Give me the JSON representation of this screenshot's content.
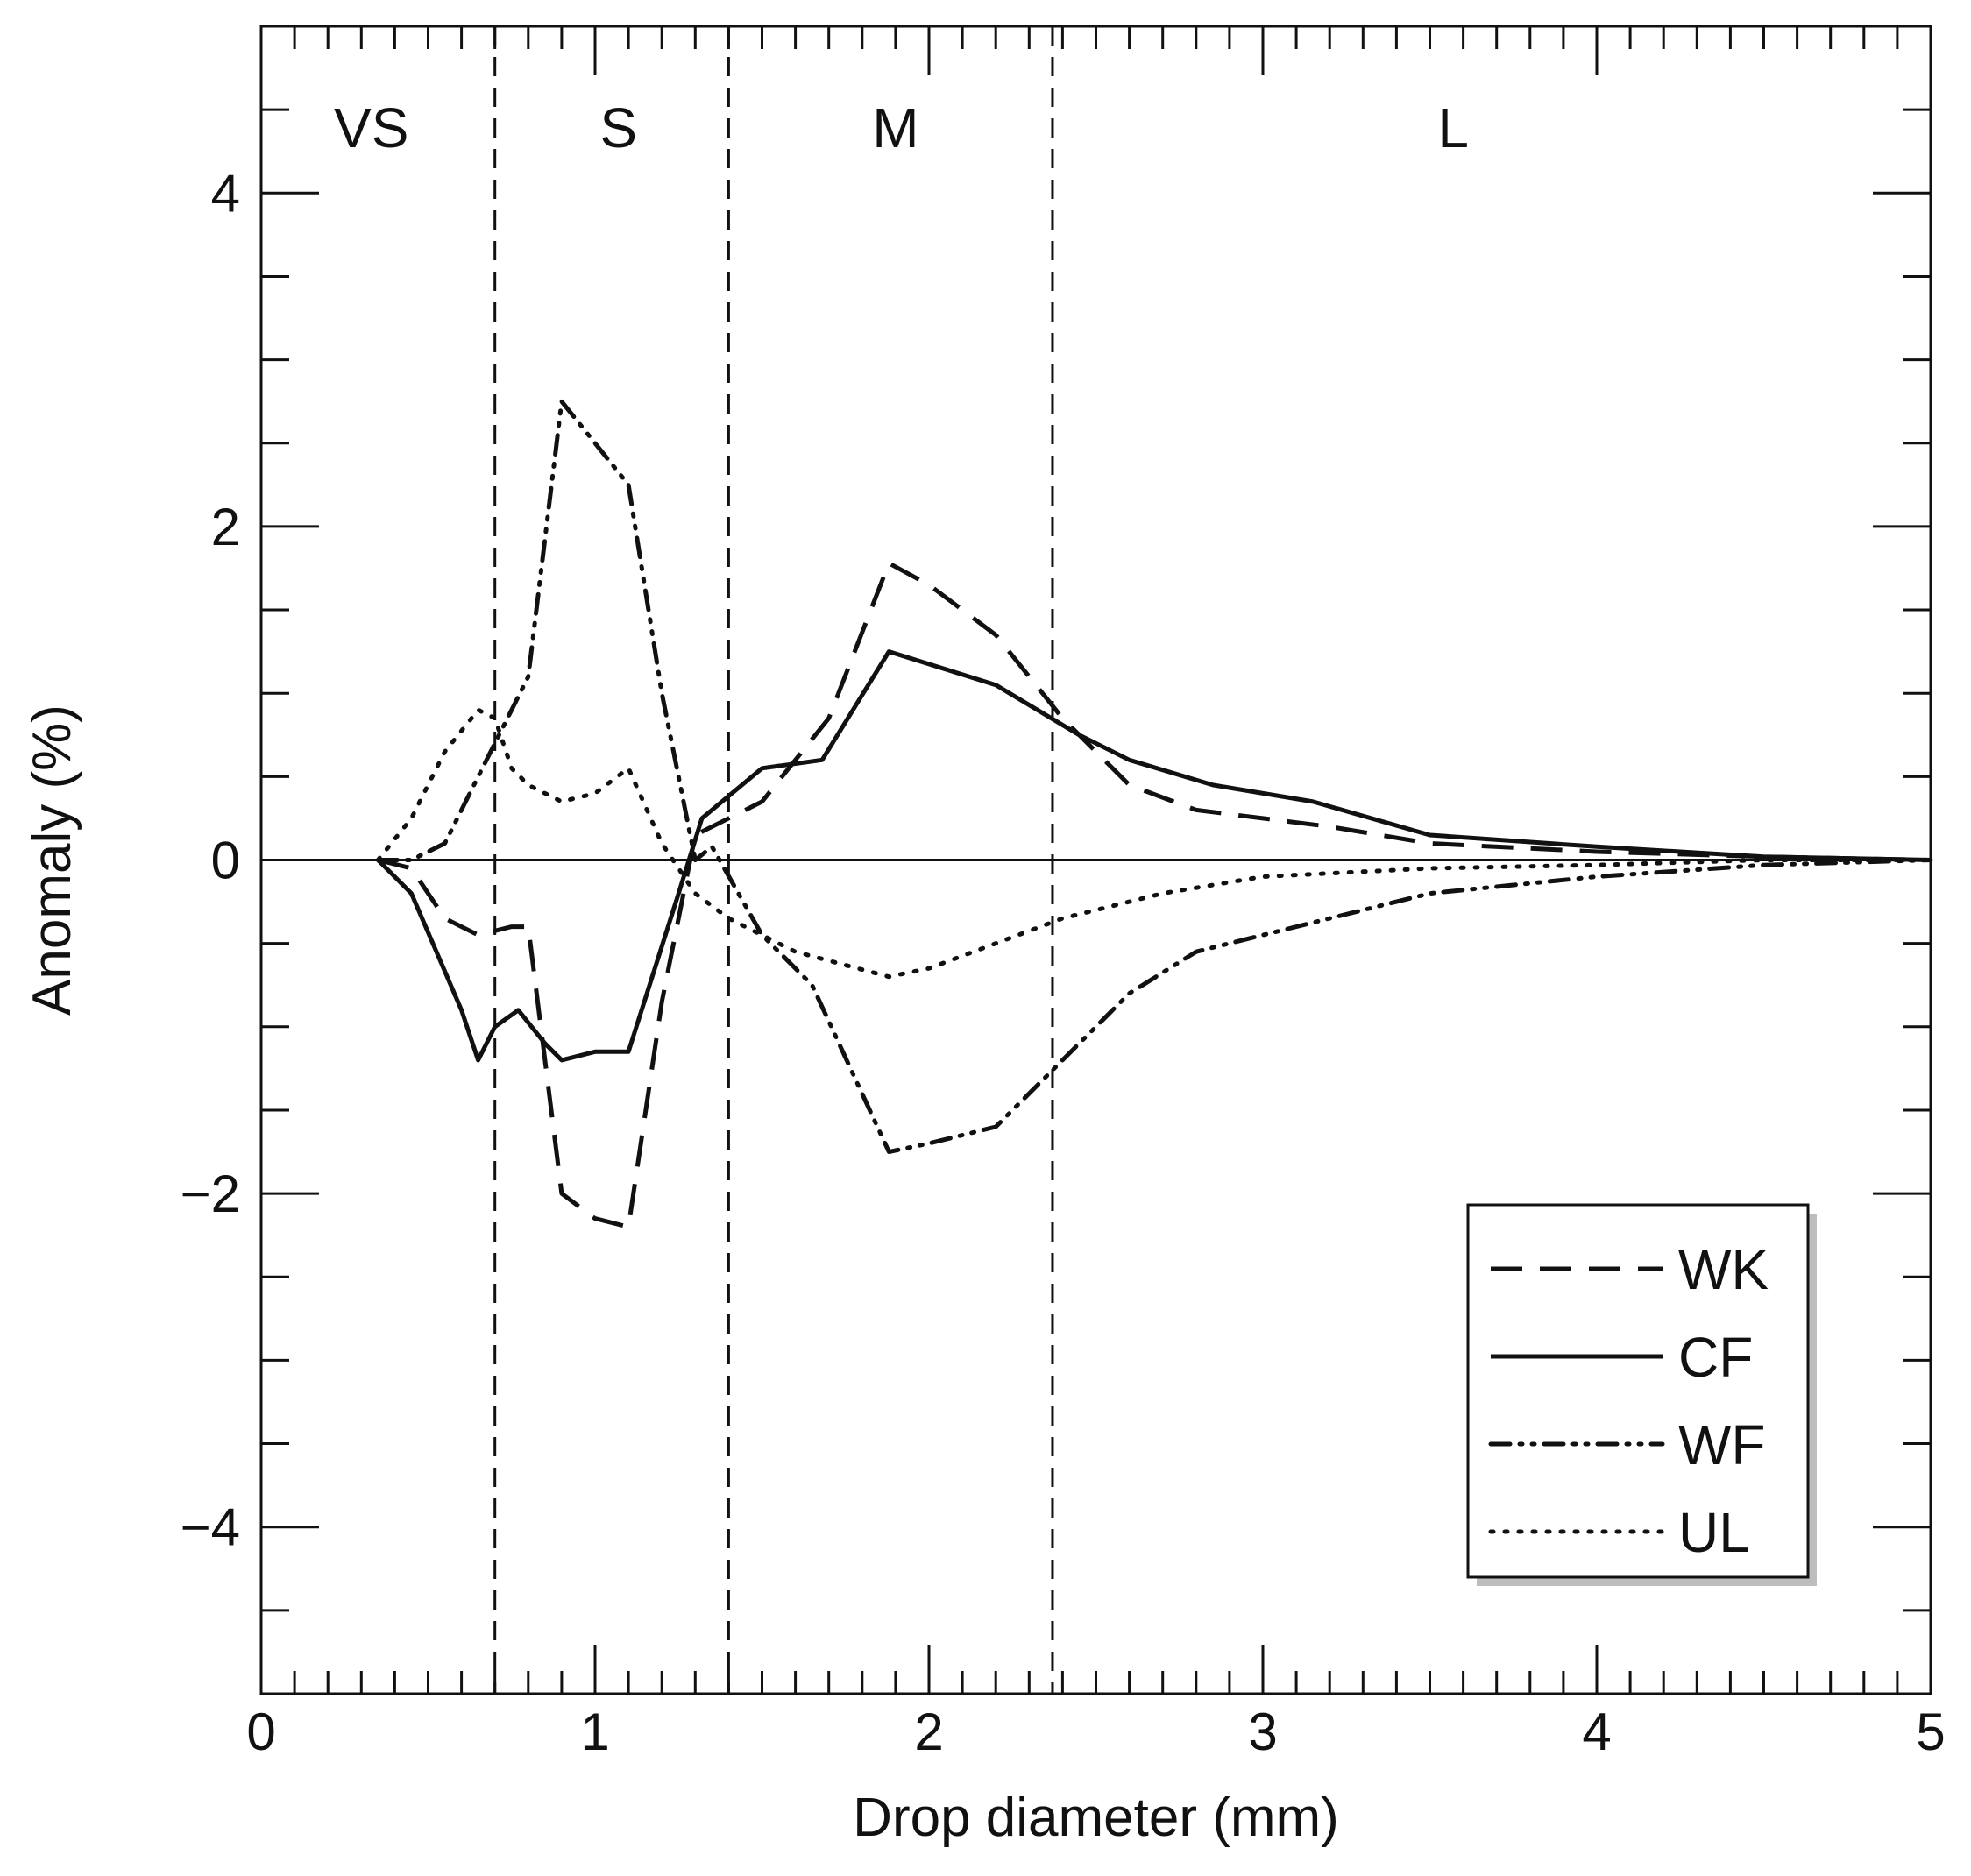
{
  "chart_data": {
    "type": "line",
    "title": "",
    "xlabel": "Drop diameter (mm)",
    "ylabel": "Anomaly (%)",
    "xlim": [
      0,
      5
    ],
    "ylim": [
      -5,
      5
    ],
    "x_ticks": [
      0,
      1,
      2,
      3,
      4,
      5
    ],
    "x_tick_labels": [
      "0",
      "1",
      "2",
      "3",
      "4",
      "5"
    ],
    "y_ticks": [
      -4,
      -2,
      0,
      2,
      4
    ],
    "y_tick_labels": [
      "−4",
      "−2",
      "0",
      "2",
      "4"
    ],
    "zero_line": true,
    "class_boundaries": [
      0.7,
      1.4,
      2.37
    ],
    "class_labels": [
      {
        "text": "VS",
        "x": 0.33
      },
      {
        "text": "S",
        "x": 1.07
      },
      {
        "text": "M",
        "x": 1.9
      },
      {
        "text": "L",
        "x": 3.57
      }
    ],
    "legend_position": "bottom-right",
    "series": [
      {
        "name": "WK",
        "style": "dashed",
        "x": [
          0.35,
          0.45,
          0.55,
          0.65,
          0.75,
          0.8,
          0.9,
          1.0,
          1.1,
          1.2,
          1.3,
          1.5,
          1.7,
          1.88,
          2.0,
          2.2,
          2.4,
          2.6,
          2.8,
          3.0,
          3.2,
          3.5,
          4.0,
          4.5,
          5.0
        ],
        "values": [
          0.0,
          -0.05,
          -0.35,
          -0.45,
          -0.4,
          -0.4,
          -2.0,
          -2.15,
          -2.2,
          -0.85,
          0.15,
          0.35,
          0.85,
          1.78,
          1.65,
          1.35,
          0.85,
          0.45,
          0.3,
          0.25,
          0.2,
          0.1,
          0.05,
          0.02,
          0.0
        ]
      },
      {
        "name": "CF",
        "style": "solid",
        "x": [
          0.35,
          0.45,
          0.6,
          0.65,
          0.7,
          0.77,
          0.85,
          0.9,
          1.0,
          1.1,
          1.25,
          1.32,
          1.5,
          1.68,
          1.88,
          2.2,
          2.45,
          2.6,
          2.85,
          3.15,
          3.5,
          4.0,
          4.5,
          5.0
        ],
        "values": [
          0.0,
          -0.2,
          -0.9,
          -1.2,
          -1.0,
          -0.9,
          -1.1,
          -1.2,
          -1.15,
          -1.15,
          -0.2,
          0.25,
          0.55,
          0.6,
          1.25,
          1.05,
          0.75,
          0.6,
          0.45,
          0.35,
          0.15,
          0.08,
          0.02,
          0.0
        ]
      },
      {
        "name": "WF",
        "style": "dash-dot-dot",
        "x": [
          0.35,
          0.45,
          0.55,
          0.65,
          0.75,
          0.8,
          0.9,
          1.0,
          1.1,
          1.2,
          1.3,
          1.35,
          1.5,
          1.65,
          1.88,
          2.0,
          2.2,
          2.4,
          2.6,
          2.8,
          3.0,
          3.2,
          3.5,
          4.0,
          4.5,
          5.0
        ],
        "values": [
          0.0,
          0.0,
          0.1,
          0.5,
          0.9,
          1.1,
          2.75,
          2.5,
          2.25,
          1.0,
          0.0,
          0.08,
          -0.45,
          -0.75,
          -1.75,
          -1.7,
          -1.6,
          -1.2,
          -0.8,
          -0.55,
          -0.45,
          -0.35,
          -0.2,
          -0.1,
          -0.03,
          0.0
        ]
      },
      {
        "name": "UL",
        "style": "dotted",
        "x": [
          0.35,
          0.45,
          0.55,
          0.65,
          0.7,
          0.75,
          0.8,
          0.9,
          1.0,
          1.1,
          1.2,
          1.3,
          1.4,
          1.6,
          1.88,
          2.0,
          2.2,
          2.4,
          2.7,
          3.0,
          3.5,
          4.0,
          4.5,
          5.0
        ],
        "values": [
          0.0,
          0.25,
          0.65,
          0.9,
          0.85,
          0.55,
          0.45,
          0.35,
          0.4,
          0.55,
          0.1,
          -0.2,
          -0.35,
          -0.55,
          -0.7,
          -0.65,
          -0.5,
          -0.35,
          -0.2,
          -0.1,
          -0.05,
          -0.03,
          0.0,
          0.0
        ]
      }
    ]
  }
}
